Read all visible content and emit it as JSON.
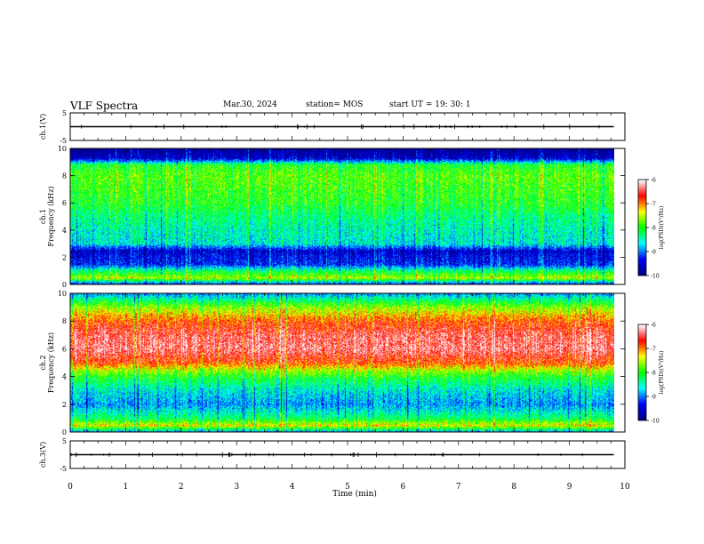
{
  "header": {
    "title": "VLF Spectra",
    "date": "Mar.30, 2024",
    "station": "station= MOS",
    "start_ut": "start  UT =   19: 30: 1"
  },
  "colorbar": {
    "label": "log(PSD)(V²/Hz)",
    "ticks": [
      "-6",
      "-7",
      "-8",
      "-9",
      "-10"
    ]
  },
  "chart_data": [
    {
      "type": "line",
      "name": "ch.1 waveform",
      "ylabel": "ch.1(V)",
      "ylim": [
        -5,
        5
      ],
      "yticks": [
        "5",
        "-5"
      ],
      "xlim": [
        0,
        10
      ],
      "x": [
        0,
        9.8
      ],
      "y": [
        0,
        0
      ]
    },
    {
      "type": "heatmap",
      "ylabel": "ch.1\nFrequency (kHz)",
      "ylim": [
        0,
        10
      ],
      "yticks": [
        "10",
        "8",
        "6",
        "4",
        "2",
        "0"
      ],
      "xlim": [
        0,
        10
      ],
      "data_extent_min": 9.8,
      "colorscale": [
        "#000080",
        "#0000ff",
        "#00ffff",
        "#00ff00",
        "#ffff00",
        "#ff0000",
        "#ffffff"
      ],
      "zlim": [
        -10,
        -6
      ],
      "freq_profile_khz": [
        0,
        0.5,
        1,
        1.5,
        2,
        2.5,
        3,
        4,
        5,
        6,
        7,
        8,
        8.8,
        9.3,
        10
      ],
      "freq_profile_logpsd": [
        -9.5,
        -7.5,
        -8.2,
        -9.3,
        -9.4,
        -9.6,
        -8.6,
        -8.5,
        -8.3,
        -8.0,
        -7.9,
        -7.8,
        -8.0,
        -9.6,
        -9.9
      ]
    },
    {
      "type": "heatmap",
      "ylabel": "ch.2\nFrequency (kHz)",
      "ylim": [
        0,
        10
      ],
      "yticks": [
        "10",
        "8",
        "6",
        "4",
        "2",
        "0"
      ],
      "xlim": [
        0,
        10
      ],
      "data_extent_min": 9.8,
      "colorscale": [
        "#000080",
        "#0000ff",
        "#00ffff",
        "#00ff00",
        "#ffff00",
        "#ff0000",
        "#ffffff"
      ],
      "zlim": [
        -10,
        -6
      ],
      "freq_profile_khz": [
        0,
        0.5,
        1,
        2,
        3,
        4,
        4.5,
        5,
        6,
        7,
        8,
        9,
        9.5,
        10
      ],
      "freq_profile_logpsd": [
        -9.0,
        -7.3,
        -8.2,
        -8.9,
        -8.6,
        -8.0,
        -7.5,
        -6.8,
        -6.3,
        -6.4,
        -6.8,
        -7.6,
        -8.2,
        -8.9
      ]
    },
    {
      "type": "line",
      "name": "ch.3 waveform",
      "ylabel": "ch.3(V)",
      "ylim": [
        -5,
        5
      ],
      "yticks": [
        "5",
        "-5"
      ],
      "xlim": [
        0,
        10
      ],
      "x": [
        0,
        9.8
      ],
      "y": [
        0,
        0
      ]
    }
  ],
  "xaxis": {
    "label": "Time  (min)",
    "ticks": [
      "0",
      "1",
      "2",
      "3",
      "4",
      "5",
      "6",
      "7",
      "8",
      "9",
      "10"
    ]
  }
}
